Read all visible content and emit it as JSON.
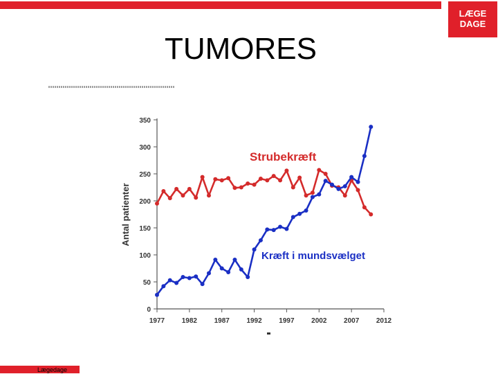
{
  "slide": {
    "title": "TUMORES",
    "footer": "Lægedage",
    "logo_line1": "LÆGE",
    "logo_line2": "DAGE"
  },
  "colors": {
    "accent": "#e0202a",
    "red_series": "#d42b2b",
    "blue_series": "#1a2fc4"
  },
  "chart_data": {
    "type": "line",
    "title": "",
    "xlabel": "",
    "ylabel": "Antal patienter",
    "xlim": [
      1977,
      2012
    ],
    "ylim": [
      0,
      350
    ],
    "xticks": [
      1977,
      1982,
      1987,
      1992,
      1997,
      2002,
      2007,
      2012
    ],
    "yticks": [
      0,
      50,
      100,
      150,
      200,
      250,
      300,
      350
    ],
    "grid": false,
    "legend": "none",
    "series": [
      {
        "name": "Strubekræft",
        "color": "#d42b2b",
        "x": [
          1977,
          1978,
          1979,
          1980,
          1981,
          1982,
          1983,
          1984,
          1985,
          1986,
          1987,
          1988,
          1989,
          1990,
          1991,
          1992,
          1993,
          1994,
          1995,
          1996,
          1997,
          1998,
          1999,
          2000,
          2001,
          2002,
          2003,
          2004,
          2005,
          2006,
          2007,
          2008,
          2009,
          2010
        ],
        "values": [
          195,
          218,
          205,
          222,
          210,
          222,
          206,
          244,
          210,
          240,
          238,
          242,
          224,
          225,
          232,
          230,
          241,
          238,
          246,
          238,
          256,
          225,
          243,
          210,
          215,
          257,
          250,
          228,
          225,
          210,
          238,
          220,
          188,
          175
        ]
      },
      {
        "name": "Kræft i mundsvælget",
        "color": "#1a2fc4",
        "x": [
          1977,
          1978,
          1979,
          1980,
          1981,
          1982,
          1983,
          1984,
          1985,
          1986,
          1987,
          1988,
          1989,
          1990,
          1991,
          1992,
          1993,
          1994,
          1995,
          1996,
          1997,
          1998,
          1999,
          2000,
          2001,
          2002,
          2003,
          2004,
          2005,
          2006,
          2007,
          2008,
          2009,
          2010
        ],
        "values": [
          26,
          42,
          53,
          48,
          59,
          57,
          60,
          46,
          66,
          91,
          75,
          68,
          91,
          73,
          59,
          110,
          127,
          147,
          146,
          152,
          148,
          170,
          176,
          182,
          207,
          212,
          237,
          230,
          222,
          227,
          244,
          235,
          283,
          337
        ]
      }
    ]
  }
}
